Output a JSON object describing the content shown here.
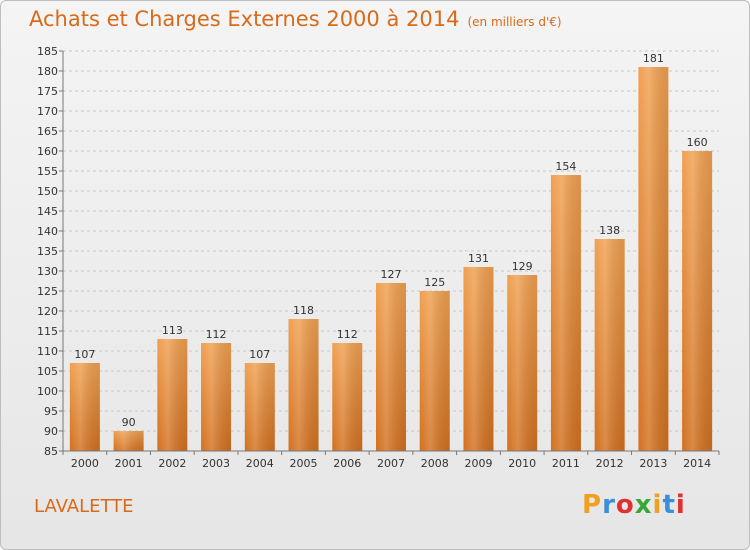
{
  "header": {
    "title": "Achats et Charges Externes 2000 à 2014",
    "subtitle": "(en milliers d'€)"
  },
  "footer": {
    "place": "LAVALETTE",
    "logo_letters": [
      "P",
      "r",
      "o",
      "x",
      "i",
      "t",
      "i"
    ],
    "logo_colors": [
      "#f0a020",
      "#3a8fd8",
      "#e03030",
      "#36a838",
      "#f0a020",
      "#3a8fd8",
      "#e03030"
    ]
  },
  "chart_data": {
    "type": "bar",
    "title": "Achats et Charges Externes 2000 à 2014",
    "subtitle": "(en milliers d'€)",
    "xlabel": "",
    "ylabel": "",
    "categories": [
      "2000",
      "2001",
      "2002",
      "2003",
      "2004",
      "2005",
      "2006",
      "2007",
      "2008",
      "2009",
      "2010",
      "2011",
      "2012",
      "2013",
      "2014"
    ],
    "values": [
      107,
      90,
      113,
      112,
      107,
      118,
      112,
      127,
      125,
      131,
      129,
      154,
      138,
      181,
      160
    ],
    "ylim": [
      85,
      185
    ],
    "yticks": [
      85,
      90,
      95,
      100,
      105,
      110,
      115,
      120,
      125,
      130,
      135,
      140,
      145,
      150,
      155,
      160,
      165,
      170,
      175,
      180,
      185
    ],
    "grid": true,
    "bar_color": "#f0a050",
    "bar_color_dark": "#d2701f"
  }
}
